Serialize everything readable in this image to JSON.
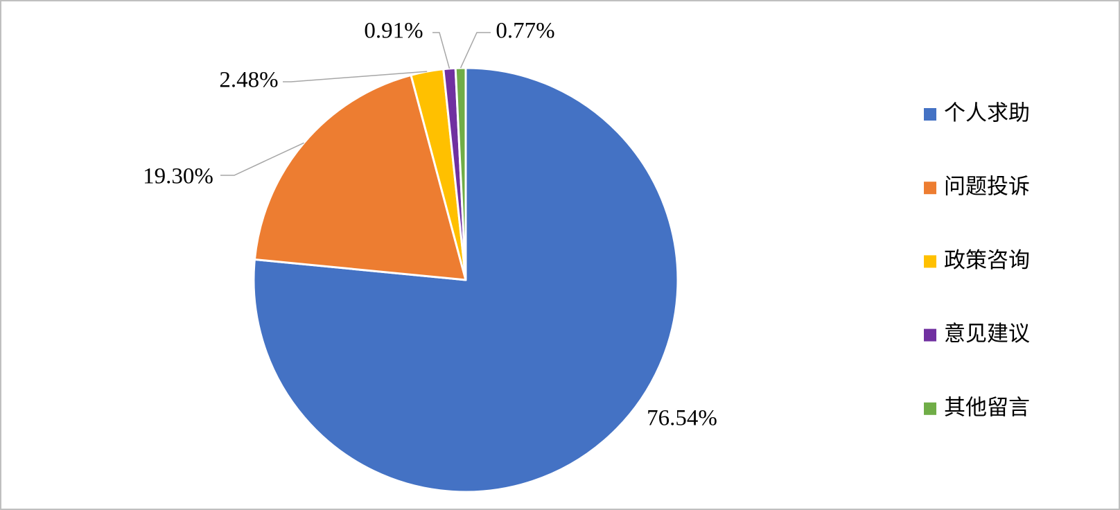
{
  "chart_data": {
    "type": "pie",
    "categories": [
      "个人求助",
      "问题投诉",
      "政策咨询",
      "意见建议",
      "其他留言"
    ],
    "values": [
      76.54,
      19.3,
      2.48,
      0.91,
      0.77
    ],
    "value_labels": [
      "76.54%",
      "19.30%",
      "2.48%",
      "0.91%",
      "0.77%"
    ],
    "colors": [
      "#4472c4",
      "#ed7d31",
      "#ffc000",
      "#7030a0",
      "#70ad47"
    ],
    "legend": "right"
  }
}
